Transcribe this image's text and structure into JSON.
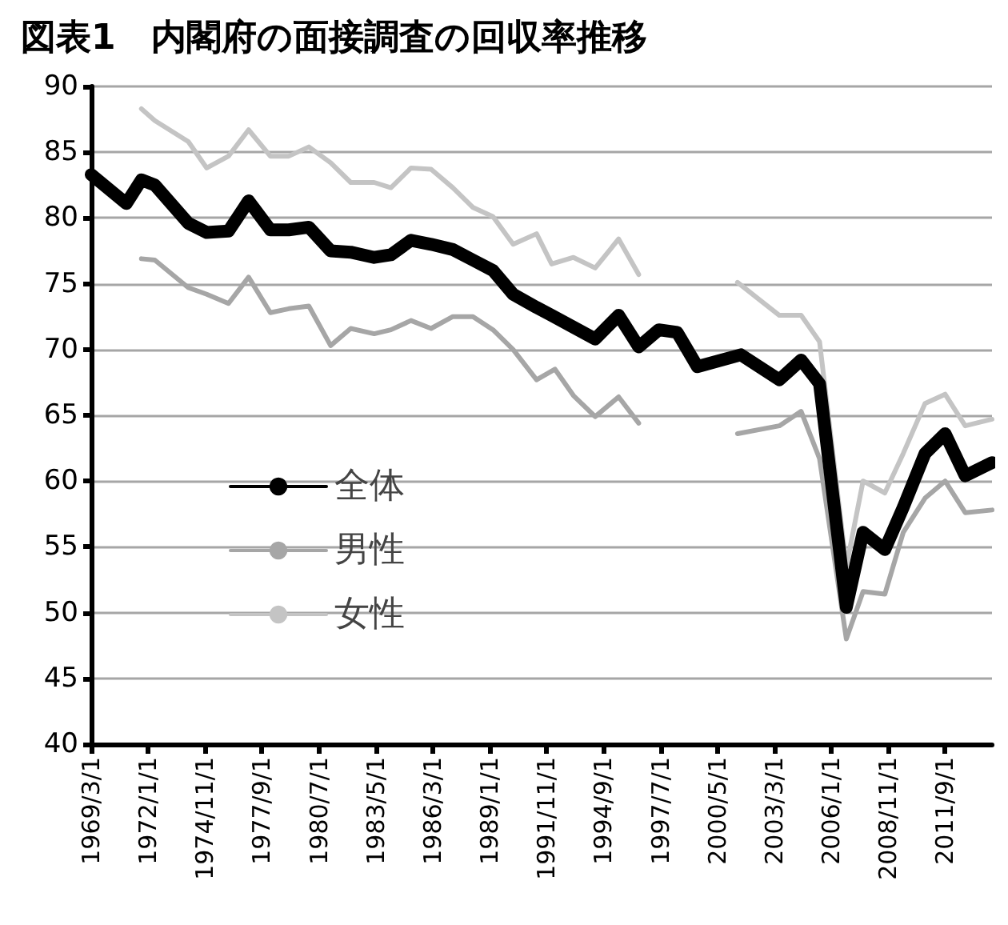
{
  "chart_data": {
    "type": "line",
    "title": "図表1　内閣府の面接調査の回収率推移",
    "series": [
      {
        "name": "全体",
        "color": "#000000",
        "x": [
          "1969-03",
          "1970-12",
          "1971-09",
          "1972-05",
          "1974-01",
          "1974-12",
          "1976-01",
          "1977-01",
          "1978-02",
          "1979-01",
          "1980-01",
          "1981-02",
          "1982-02",
          "1983-04",
          "1984-02",
          "1985-02",
          "1986-02",
          "1987-03",
          "1988-03",
          "1989-03",
          "1990-03",
          "1991-05",
          "1992-02",
          "1993-03",
          "1994-04",
          "1995-06",
          "1996-06",
          "1997-06",
          "1998-05",
          "1999-05",
          "2001-07",
          "2003-06",
          "2004-07",
          "2005-06",
          "2006-10",
          "2007-08",
          "2008-09",
          "2009-08",
          "2010-09",
          "2011-09",
          "2012-09",
          "2014-01"
        ],
        "values": [
          83.3,
          81.1,
          82.9,
          82.5,
          79.6,
          78.9,
          79.0,
          81.3,
          79.1,
          79.1,
          79.3,
          77.5,
          77.4,
          77.0,
          77.2,
          78.3,
          78.0,
          77.6,
          76.8,
          76.0,
          74.2,
          73.2,
          72.6,
          71.7,
          70.8,
          72.6,
          70.2,
          71.5,
          71.3,
          68.7,
          69.6,
          67.7,
          69.2,
          67.4,
          50.4,
          56.1,
          54.8,
          58.0,
          62.1,
          63.6,
          60.4,
          61.4
        ]
      },
      {
        "name": "男性",
        "color": "#a6a6a6",
        "x": [
          "1971-09",
          "1972-05",
          "1974-01",
          "1974-12",
          "1976-01",
          "1977-01",
          "1978-02",
          "1979-01",
          "1980-01",
          "1981-02",
          "1982-02",
          "1983-04",
          "1984-02",
          "1985-02",
          "1986-02",
          "1987-03",
          "1988-03",
          "1989-03",
          "1990-03",
          "1991-05",
          "1992-04",
          "1993-03",
          "1994-04",
          "1995-06",
          "1996-06",
          null,
          "2001-05",
          "2003-06",
          "2004-07",
          "2005-06",
          "2006-10",
          "2007-08",
          "2008-09",
          "2009-08",
          "2010-09",
          "2011-09",
          "2012-09",
          "2014-01"
        ],
        "values": [
          76.9,
          76.8,
          74.7,
          74.2,
          73.5,
          75.5,
          72.8,
          73.1,
          73.3,
          70.3,
          71.6,
          71.2,
          71.5,
          72.2,
          71.6,
          72.5,
          72.5,
          71.5,
          70.0,
          67.7,
          68.5,
          66.5,
          64.9,
          66.4,
          64.4,
          null,
          63.6,
          64.2,
          65.3,
          61.7,
          48.0,
          51.6,
          51.4,
          56.1,
          58.7,
          60.0,
          57.6,
          57.8
        ]
      },
      {
        "name": "女性",
        "color": "#c4c4c4",
        "x": [
          "1971-09",
          "1972-05",
          "1974-01",
          "1974-12",
          "1976-01",
          "1977-01",
          "1978-02",
          "1979-01",
          "1980-01",
          "1981-02",
          "1982-02",
          "1983-04",
          "1984-02",
          "1985-02",
          "1986-02",
          "1987-03",
          "1988-03",
          "1989-03",
          "1990-03",
          "1991-05",
          "1992-02",
          "1993-03",
          "1994-04",
          "1995-06",
          "1996-06",
          null,
          "2001-05",
          "2002-06",
          "2003-06",
          "2004-07",
          "2005-06",
          "2006-10",
          "2007-08",
          "2008-09",
          "2009-08",
          "2010-09",
          "2011-09",
          "2012-09",
          "2014-01"
        ],
        "values": [
          88.3,
          87.4,
          85.8,
          83.8,
          84.7,
          86.7,
          84.7,
          84.7,
          85.4,
          84.2,
          82.7,
          82.7,
          82.3,
          83.8,
          83.7,
          82.3,
          80.8,
          80.1,
          78.0,
          78.8,
          76.5,
          77.0,
          76.2,
          78.4,
          75.7,
          null,
          75.1,
          73.8,
          72.6,
          72.6,
          70.6,
          53.5,
          60.0,
          59.1,
          62.1,
          65.9,
          66.6,
          64.2,
          64.7
        ]
      }
    ],
    "xlim": [
      "1969-03",
      "2014-01"
    ],
    "xticks": [
      {
        "value": "1969-03",
        "label": "1969/3/1"
      },
      {
        "value": "1972-01",
        "label": "1972/1/1"
      },
      {
        "value": "1974-11",
        "label": "1974/11/1"
      },
      {
        "value": "1977-09",
        "label": "1977/9/1"
      },
      {
        "value": "1980-07",
        "label": "1980/7/1"
      },
      {
        "value": "1983-05",
        "label": "1983/5/1"
      },
      {
        "value": "1986-03",
        "label": "1986/3/1"
      },
      {
        "value": "1989-01",
        "label": "1989/1/1"
      },
      {
        "value": "1991-11",
        "label": "1991/11/1"
      },
      {
        "value": "1994-09",
        "label": "1994/9/1"
      },
      {
        "value": "1997-07",
        "label": "1997/7/1"
      },
      {
        "value": "2000-05",
        "label": "2000/5/1"
      },
      {
        "value": "2003-03",
        "label": "2003/3/1"
      },
      {
        "value": "2006-01",
        "label": "2006/1/1"
      },
      {
        "value": "2008-11",
        "label": "2008/11/1"
      },
      {
        "value": "2011-09",
        "label": "2011/9/1"
      }
    ],
    "ylim": [
      40,
      90
    ],
    "yticks": [
      40,
      45,
      50,
      55,
      60,
      65,
      70,
      75,
      80,
      85,
      90
    ],
    "grid": "y",
    "legend": "left",
    "marker": "none",
    "line_style": "solid"
  }
}
